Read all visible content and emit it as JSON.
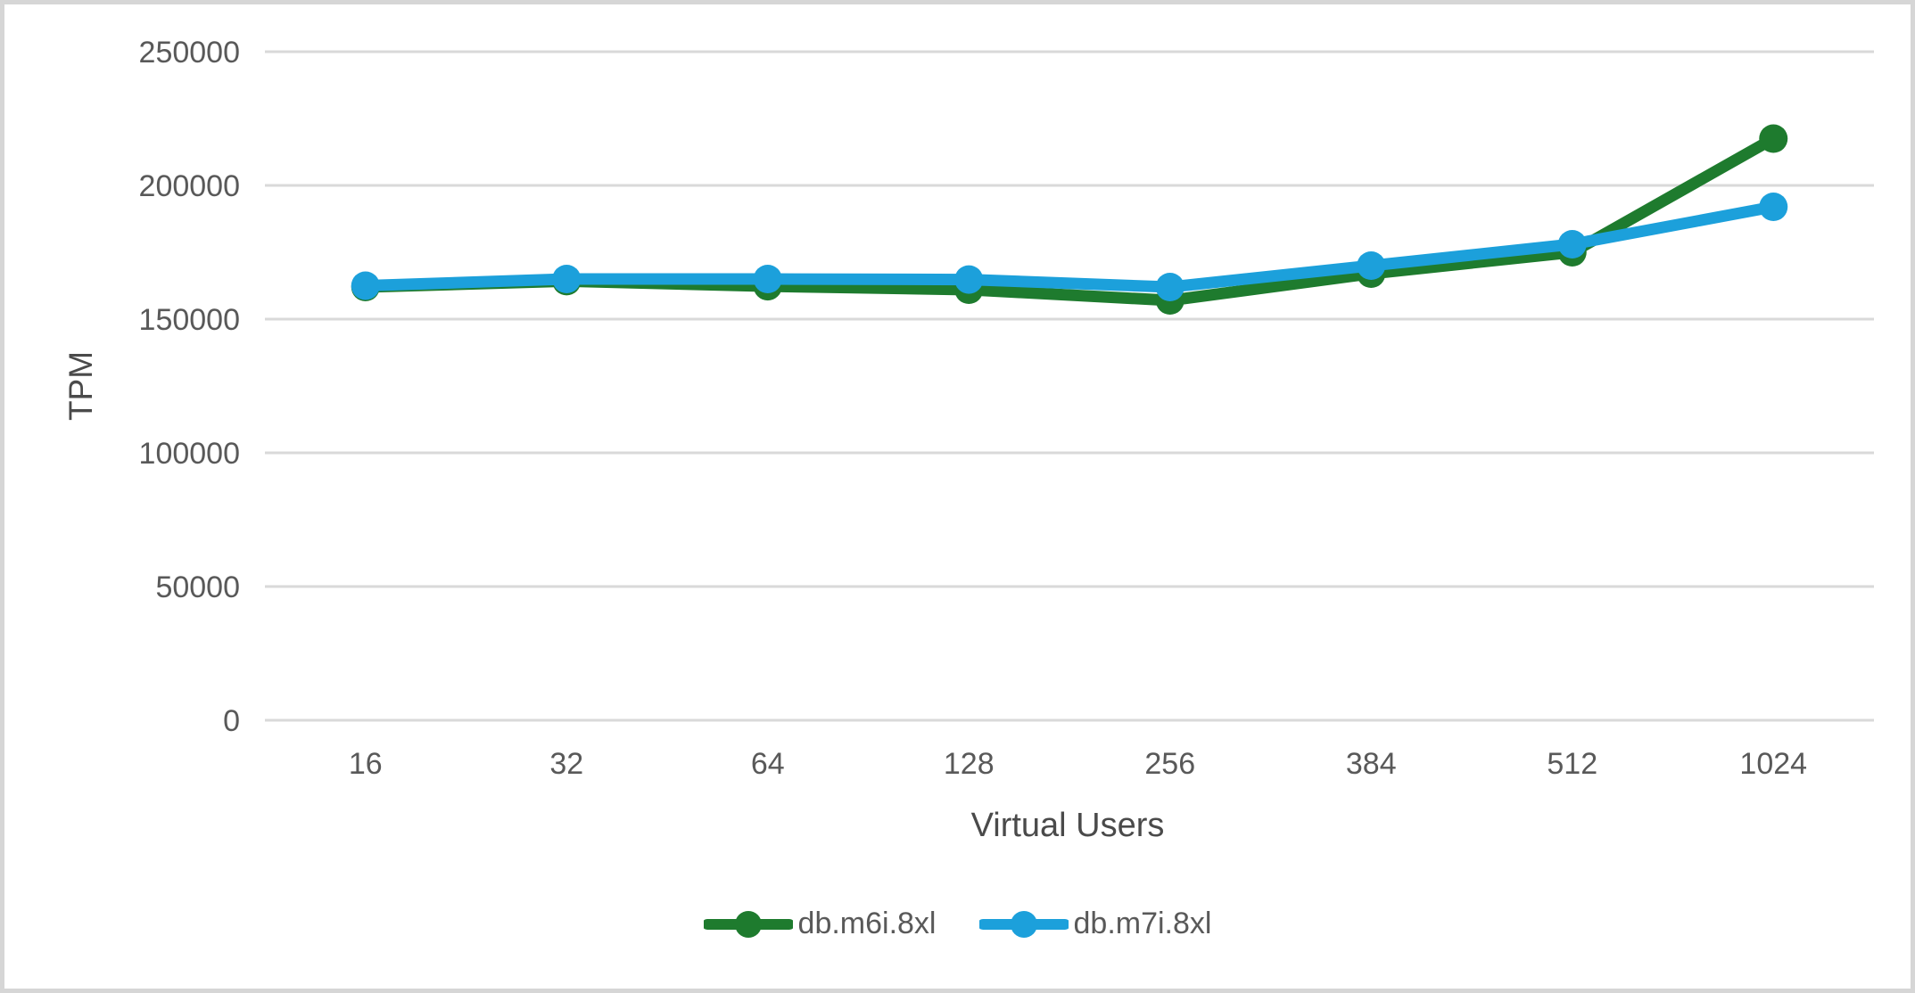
{
  "chart_data": {
    "type": "line",
    "title": "",
    "xlabel": "Virtual Users",
    "ylabel": "TPM",
    "categories": [
      "16",
      "32",
      "64",
      "128",
      "256",
      "384",
      "512",
      "1024"
    ],
    "series": [
      {
        "name": "db.m6i.8xl",
        "color": "#1E7B2E",
        "values": [
          162000,
          164200,
          162300,
          161000,
          157000,
          167000,
          175000,
          217500
        ]
      },
      {
        "name": "db.m7i.8xl",
        "color": "#1CA0DB",
        "values": [
          162500,
          165000,
          165000,
          164800,
          162000,
          170000,
          178000,
          192000
        ]
      }
    ],
    "ylim": [
      0,
      250000
    ],
    "ytick_interval": 50000,
    "ytick_labels": [
      "0",
      "50000",
      "100000",
      "150000",
      "200000",
      "250000"
    ],
    "grid": "horizontal",
    "legend_position": "bottom",
    "marker": "circle"
  },
  "style": {
    "axis_text_color": "#595959",
    "axis_title_color": "#4a4a4a",
    "gridline_color": "#d9d9d9",
    "background": "#ffffff",
    "border_color": "#d6d6d6"
  }
}
